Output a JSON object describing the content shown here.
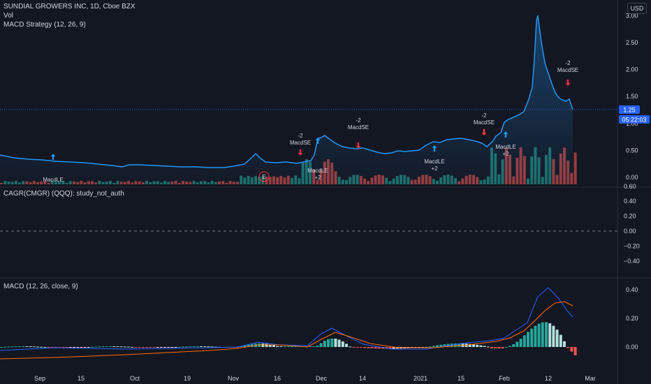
{
  "header": {
    "symbol_title": "SUNDIAL GROWERS INC, 1D, Cboe BZX",
    "volume_label": "Vol",
    "strategy_label": "MACD Strategy (12, 26, 9)",
    "currency_button": "USD"
  },
  "colors": {
    "background": "#131722",
    "price_line": "#2196f3",
    "macd_line": "#2962ff",
    "signal_line": "#ff6d00",
    "up_bar": "#26a69a",
    "down_bar": "#ef5350",
    "long_arrow": "#2196f3",
    "short_arrow": "#f23645",
    "price_tag": "#2962ff",
    "earnings_marker": "#f23645"
  },
  "main_pane": {
    "y_axis_ticks": [
      "3.00",
      "2.50",
      "2.00",
      "1.50",
      "1.00",
      "0.50",
      "0.00"
    ],
    "current_price": "1.25",
    "countdown": "05:22:03",
    "earnings_label": "E"
  },
  "signals": [
    {
      "type": "long",
      "label": "MacdLE",
      "qty": ""
    },
    {
      "type": "short",
      "label": "MacdSE",
      "qty": "-2"
    },
    {
      "type": "long",
      "label": "MacdLE",
      "qty": "+2"
    },
    {
      "type": "short",
      "label": "MacdSE",
      "qty": "-2"
    },
    {
      "type": "long",
      "label": "MacdLE",
      "qty": "+2"
    },
    {
      "type": "short",
      "label": "MacdSE",
      "qty": "-2"
    },
    {
      "type": "long",
      "label": "MacdLE",
      "qty": "+2"
    },
    {
      "type": "short",
      "label": "MacdSE",
      "qty": "-2"
    }
  ],
  "cagr_pane": {
    "label": "CAGR(CMGR) (QQQ): study_not_auth",
    "y_axis_ticks": [
      "0.60",
      "0.40",
      "0.20",
      "0.00",
      "−0.20",
      "−0.40"
    ]
  },
  "macd_pane": {
    "label": "MACD (12, 26, close, 9)",
    "y_axis_ticks": [
      "0.40",
      "0.20",
      "0.00"
    ]
  },
  "x_axis_labels": [
    "Sep",
    "15",
    "Oct",
    "19",
    "Nov",
    "16",
    "Dec",
    "14",
    "2021",
    "15",
    "Feb",
    "12",
    "Mar"
  ]
}
